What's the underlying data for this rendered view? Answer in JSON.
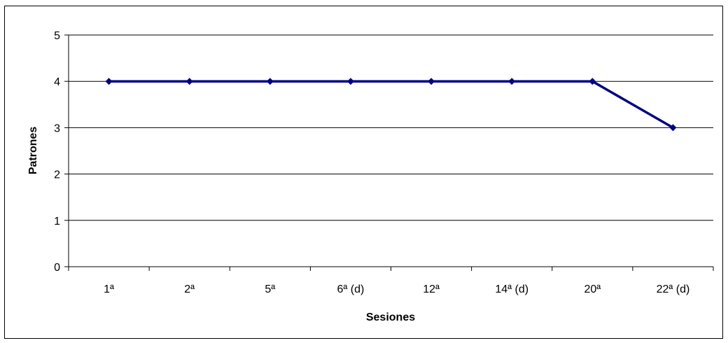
{
  "chart_data": {
    "type": "line",
    "categories": [
      "1ª",
      "2ª",
      "5ª",
      "6ª (d)",
      "12ª",
      "14ª (d)",
      "20ª",
      "22ª (d)"
    ],
    "series": [
      {
        "values": [
          4,
          4,
          4,
          4,
          4,
          4,
          4,
          3
        ]
      }
    ],
    "xlabel": "Sesiones",
    "ylabel": "Patrones",
    "ylim": [
      0,
      5
    ],
    "yticks": [
      "0",
      "1",
      "2",
      "3",
      "4",
      "5"
    ],
    "grid": "horizontal major gridlines",
    "legend": "none",
    "colors": {
      "series": "#000080",
      "gridline": "#000000",
      "axis": "#000000",
      "background": "#ffffff"
    }
  }
}
